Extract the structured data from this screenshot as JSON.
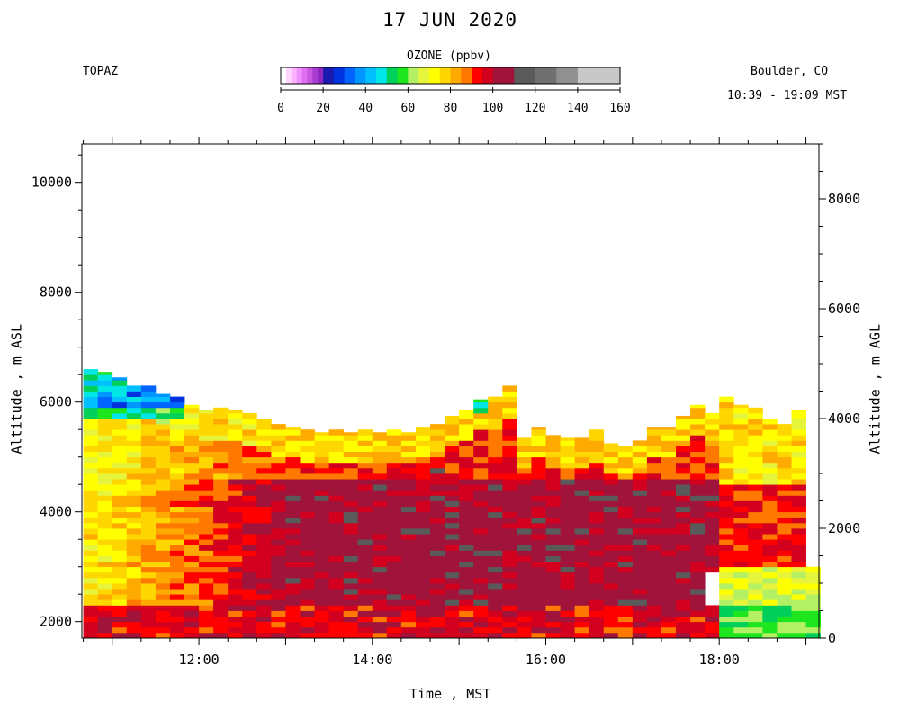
{
  "header": {
    "title": "17 JUN 2020",
    "instrument": "TOPAZ",
    "location": "Boulder, CO",
    "time_range": "10:39 - 19:09 MST"
  },
  "colorbar": {
    "title": "OZONE (ppbv)",
    "ticks": [
      0,
      20,
      40,
      60,
      80,
      100,
      120,
      140,
      160
    ],
    "stops": [
      {
        "from": 0,
        "to": 2.5,
        "color": "#ffffff"
      },
      {
        "from": 2.5,
        "to": 5,
        "color": "#ffd6ff"
      },
      {
        "from": 5,
        "to": 7.5,
        "color": "#ffb0ff"
      },
      {
        "from": 7.5,
        "to": 10,
        "color": "#f090ff"
      },
      {
        "from": 10,
        "to": 12.5,
        "color": "#e070f0"
      },
      {
        "from": 12.5,
        "to": 15,
        "color": "#c857e0"
      },
      {
        "from": 15,
        "to": 17.5,
        "color": "#a83cd0"
      },
      {
        "from": 17.5,
        "to": 20,
        "color": "#8c28c0"
      },
      {
        "from": 20,
        "to": 25,
        "color": "#1a1ab0"
      },
      {
        "from": 25,
        "to": 30,
        "color": "#0032e0"
      },
      {
        "from": 30,
        "to": 35,
        "color": "#0064ff"
      },
      {
        "from": 35,
        "to": 40,
        "color": "#0096ff"
      },
      {
        "from": 40,
        "to": 45,
        "color": "#00c0ff"
      },
      {
        "from": 45,
        "to": 50,
        "color": "#00e6e6"
      },
      {
        "from": 50,
        "to": 55,
        "color": "#00d05a"
      },
      {
        "from": 55,
        "to": 60,
        "color": "#1ee61e"
      },
      {
        "from": 60,
        "to": 65,
        "color": "#b4f064"
      },
      {
        "from": 65,
        "to": 70,
        "color": "#e6f53c"
      },
      {
        "from": 70,
        "to": 75,
        "color": "#ffff00"
      },
      {
        "from": 75,
        "to": 80,
        "color": "#ffd700"
      },
      {
        "from": 80,
        "to": 85,
        "color": "#ffaa00"
      },
      {
        "from": 85,
        "to": 90,
        "color": "#ff7800"
      },
      {
        "from": 90,
        "to": 95,
        "color": "#ff0000"
      },
      {
        "from": 95,
        "to": 100,
        "color": "#d2001e"
      },
      {
        "from": 100,
        "to": 110,
        "color": "#a0143c"
      },
      {
        "from": 110,
        "to": 120,
        "color": "#5a5a5a"
      },
      {
        "from": 120,
        "to": 130,
        "color": "#707070"
      },
      {
        "from": 130,
        "to": 140,
        "color": "#909090"
      },
      {
        "from": 140,
        "to": 160,
        "color": "#c8c8c8"
      }
    ]
  },
  "chart_data": {
    "type": "heatmap",
    "title": "17 JUN 2020",
    "xlabel": "Time , MST",
    "ylabel": "Altitude , m ASL",
    "ylabel_right": "Altitude , m AGL",
    "x_range_hours": [
      10.65,
      19.15
    ],
    "x_ticks": [
      "12:00",
      "14:00",
      "16:00",
      "18:00"
    ],
    "x_tick_hours": [
      12,
      14,
      16,
      18
    ],
    "y_range_m_asl": [
      1700,
      10700
    ],
    "y_ticks_left": [
      2000,
      4000,
      6000,
      8000,
      10000
    ],
    "y_range_m_agl": [
      0,
      9000
    ],
    "y_ticks_right": [
      0,
      2000,
      4000,
      6000,
      8000
    ],
    "colorbar_label": "OZONE (ppbv)",
    "colorbar_range": [
      0,
      160
    ],
    "profile_time_step_min": 10,
    "profile_top_m_asl": [
      {
        "t": "10:40",
        "top": 6600
      },
      {
        "t": "10:50",
        "top": 6550
      },
      {
        "t": "11:00",
        "top": 6450
      },
      {
        "t": "11:10",
        "top": 6300
      },
      {
        "t": "11:20",
        "top": 6300
      },
      {
        "t": "11:30",
        "top": 6150
      },
      {
        "t": "11:40",
        "top": 6100
      },
      {
        "t": "11:50",
        "top": 5950
      },
      {
        "t": "12:00",
        "top": 5850
      },
      {
        "t": "12:10",
        "top": 5900
      },
      {
        "t": "12:20",
        "top": 5850
      },
      {
        "t": "12:30",
        "top": 5800
      },
      {
        "t": "12:40",
        "top": 5700
      },
      {
        "t": "12:50",
        "top": 5600
      },
      {
        "t": "13:00",
        "top": 5550
      },
      {
        "t": "13:10",
        "top": 5500
      },
      {
        "t": "13:20",
        "top": 5450
      },
      {
        "t": "13:30",
        "top": 5500
      },
      {
        "t": "13:40",
        "top": 5450
      },
      {
        "t": "13:50",
        "top": 5500
      },
      {
        "t": "14:00",
        "top": 5450
      },
      {
        "t": "14:10",
        "top": 5500
      },
      {
        "t": "14:20",
        "top": 5450
      },
      {
        "t": "14:30",
        "top": 5550
      },
      {
        "t": "14:40",
        "top": 5600
      },
      {
        "t": "14:50",
        "top": 5750
      },
      {
        "t": "15:00",
        "top": 5850
      },
      {
        "t": "15:10",
        "top": 6050
      },
      {
        "t": "15:20",
        "top": 6100
      },
      {
        "t": "15:30",
        "top": 6300
      },
      {
        "t": "15:40",
        "top": 5350
      },
      {
        "t": "15:50",
        "top": 5550
      },
      {
        "t": "16:00",
        "top": 5400
      },
      {
        "t": "16:10",
        "top": 5350
      },
      {
        "t": "16:20",
        "top": 5350
      },
      {
        "t": "16:30",
        "top": 5500
      },
      {
        "t": "16:40",
        "top": 5250
      },
      {
        "t": "16:50",
        "top": 5200
      },
      {
        "t": "17:00",
        "top": 5300
      },
      {
        "t": "17:10",
        "top": 5550
      },
      {
        "t": "17:20",
        "top": 5550
      },
      {
        "t": "17:30",
        "top": 5750
      },
      {
        "t": "17:40",
        "top": 5950
      },
      {
        "t": "17:50",
        "top": 5800
      },
      {
        "t": "18:00",
        "top": 6100
      },
      {
        "t": "18:10",
        "top": 5950
      },
      {
        "t": "18:20",
        "top": 5900
      },
      {
        "t": "18:30",
        "top": 5700
      },
      {
        "t": "18:40",
        "top": 5600
      },
      {
        "t": "18:50",
        "top": 5850
      },
      {
        "t": "19:00",
        "top": 3000
      }
    ],
    "ozone_profile_layers_ppbv": [
      {
        "layer": "1700-2300 m ASL",
        "ozone_range": [
          90,
          110
        ]
      },
      {
        "layer": "2300-4500 m ASL",
        "ozone_range": [
          95,
          115
        ]
      },
      {
        "layer": "4500-5500 m ASL",
        "ozone_range": [
          80,
          100
        ]
      },
      {
        "layer": "above 5500 m ASL",
        "ozone_range": [
          60,
          80
        ]
      }
    ],
    "notable_features": [
      {
        "time": "10:40-11:40",
        "altitude_m_asl": [
          5800,
          6600
        ],
        "ozone_ppbv": [
          20,
          55
        ]
      },
      {
        "time": "15:10",
        "altitude_m_asl": [
          5800,
          6050
        ],
        "ozone_ppbv": [
          45,
          55
        ]
      },
      {
        "time": "18:00-19:09",
        "altitude_m_asl": [
          1700,
          2300
        ],
        "ozone_ppbv": [
          55,
          65
        ]
      },
      {
        "time": "17:50",
        "altitude_m_asl": [
          2300,
          2900
        ],
        "ozone_ppbv": "no data"
      }
    ]
  }
}
